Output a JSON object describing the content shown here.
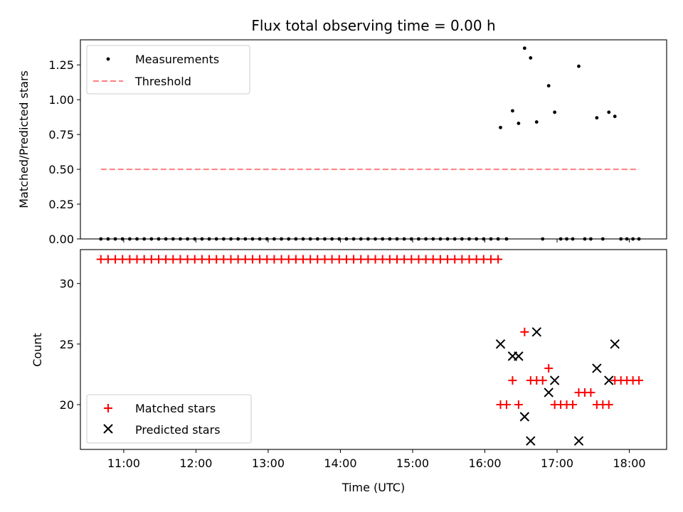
{
  "chart_data": [
    {
      "type": "scatter",
      "title": "Flux total observing time = 0.00 h",
      "xlabel": "",
      "ylabel": "Matched/Predicted stars",
      "xlim": [
        "10:24",
        "18:31"
      ],
      "ylim": [
        0,
        1.43
      ],
      "yticks": [
        "0.00",
        "0.25",
        "0.50",
        "0.75",
        "1.00",
        "1.25"
      ],
      "xticks": [
        "11:00",
        "12:00",
        "13:00",
        "14:00",
        "15:00",
        "16:00",
        "17:00",
        "18:00"
      ],
      "legend": "top-left",
      "series": [
        {
          "name": "Measurements",
          "color": "#000000",
          "marker": "dot",
          "x": [
            "10:41",
            "10:47",
            "10:53",
            "10:59",
            "11:05",
            "11:11",
            "11:17",
            "11:23",
            "11:29",
            "11:35",
            "11:41",
            "11:47",
            "11:53",
            "11:59",
            "12:05",
            "12:11",
            "12:17",
            "12:23",
            "12:29",
            "12:35",
            "12:41",
            "12:47",
            "12:53",
            "12:59",
            "13:05",
            "13:11",
            "13:17",
            "13:23",
            "13:29",
            "13:35",
            "13:41",
            "13:47",
            "13:53",
            "13:59",
            "14:05",
            "14:11",
            "14:17",
            "14:23",
            "14:29",
            "14:35",
            "14:41",
            "14:47",
            "14:53",
            "14:59",
            "15:05",
            "15:11",
            "15:17",
            "15:23",
            "15:29",
            "15:35",
            "15:41",
            "15:47",
            "15:53",
            "15:59",
            "16:05",
            "16:11",
            "16:13",
            "16:18",
            "16:23",
            "16:28",
            "16:33",
            "16:38",
            "16:43",
            "16:48",
            "16:53",
            "16:58",
            "17:03",
            "17:08",
            "17:13",
            "17:18",
            "17:23",
            "17:28",
            "17:33",
            "17:38",
            "17:43",
            "17:48",
            "17:53",
            "17:58",
            "18:03",
            "18:08"
          ],
          "y": [
            0,
            0,
            0,
            0,
            0,
            0,
            0,
            0,
            0,
            0,
            0,
            0,
            0,
            0,
            0,
            0,
            0,
            0,
            0,
            0,
            0,
            0,
            0,
            0,
            0,
            0,
            0,
            0,
            0,
            0,
            0,
            0,
            0,
            0,
            0,
            0,
            0,
            0,
            0,
            0,
            0,
            0,
            0,
            0,
            0,
            0,
            0,
            0,
            0,
            0,
            0,
            0,
            0,
            0,
            0,
            0,
            0.8,
            0,
            0.92,
            0.83,
            1.37,
            1.3,
            0.84,
            0,
            1.1,
            0.91,
            0,
            0,
            0,
            1.24,
            0,
            0,
            0.87,
            0,
            0.91,
            0.88,
            0,
            0,
            0,
            0
          ]
        },
        {
          "name": "Threshold",
          "color": "#ff7f7f",
          "style": "dashed",
          "x": [
            "10:41",
            "18:08"
          ],
          "y": [
            0.5,
            0.5
          ]
        }
      ]
    },
    {
      "type": "scatter",
      "title": "",
      "xlabel": "Time (UTC)",
      "ylabel": "Count",
      "xlim": [
        "10:24",
        "18:31"
      ],
      "ylim": [
        16.3,
        32.8
      ],
      "yticks": [
        "20",
        "25",
        "30"
      ],
      "xticks": [
        "11:00",
        "12:00",
        "13:00",
        "14:00",
        "15:00",
        "16:00",
        "17:00",
        "18:00"
      ],
      "legend": "bottom-left",
      "series": [
        {
          "name": "Matched stars",
          "color": "#ff0000",
          "marker": "plus",
          "x": [
            "10:41",
            "10:47",
            "10:53",
            "10:59",
            "11:05",
            "11:11",
            "11:17",
            "11:23",
            "11:29",
            "11:35",
            "11:41",
            "11:47",
            "11:53",
            "11:59",
            "12:05",
            "12:11",
            "12:17",
            "12:23",
            "12:29",
            "12:35",
            "12:41",
            "12:47",
            "12:53",
            "12:59",
            "13:05",
            "13:11",
            "13:17",
            "13:23",
            "13:29",
            "13:35",
            "13:41",
            "13:47",
            "13:53",
            "13:59",
            "14:05",
            "14:11",
            "14:17",
            "14:23",
            "14:29",
            "14:35",
            "14:41",
            "14:47",
            "14:53",
            "14:59",
            "15:05",
            "15:11",
            "15:17",
            "15:23",
            "15:29",
            "15:35",
            "15:41",
            "15:47",
            "15:53",
            "15:59",
            "16:05",
            "16:11",
            "16:13",
            "16:18",
            "16:23",
            "16:28",
            "16:33",
            "16:38",
            "16:43",
            "16:48",
            "16:53",
            "16:58",
            "17:03",
            "17:08",
            "17:13",
            "17:18",
            "17:23",
            "17:28",
            "17:33",
            "17:38",
            "17:43",
            "17:48",
            "17:53",
            "17:58",
            "18:03",
            "18:08"
          ],
          "y": [
            32,
            32,
            32,
            32,
            32,
            32,
            32,
            32,
            32,
            32,
            32,
            32,
            32,
            32,
            32,
            32,
            32,
            32,
            32,
            32,
            32,
            32,
            32,
            32,
            32,
            32,
            32,
            32,
            32,
            32,
            32,
            32,
            32,
            32,
            32,
            32,
            32,
            32,
            32,
            32,
            32,
            32,
            32,
            32,
            32,
            32,
            32,
            32,
            32,
            32,
            32,
            32,
            32,
            32,
            32,
            32,
            20,
            20,
            22,
            20,
            26,
            22,
            22,
            22,
            23,
            20,
            20,
            20,
            20,
            21,
            21,
            21,
            20,
            20,
            20,
            22,
            22,
            22,
            22,
            22
          ]
        },
        {
          "name": "Predicted stars",
          "color": "#000000",
          "marker": "x",
          "x": [
            "16:13",
            "16:23",
            "16:28",
            "16:33",
            "16:38",
            "16:43",
            "16:53",
            "16:58",
            "17:18",
            "17:33",
            "17:43",
            "17:48"
          ],
          "y": [
            25,
            24,
            24,
            19,
            17,
            26,
            21,
            22,
            17,
            23,
            22,
            25
          ]
        }
      ]
    }
  ]
}
